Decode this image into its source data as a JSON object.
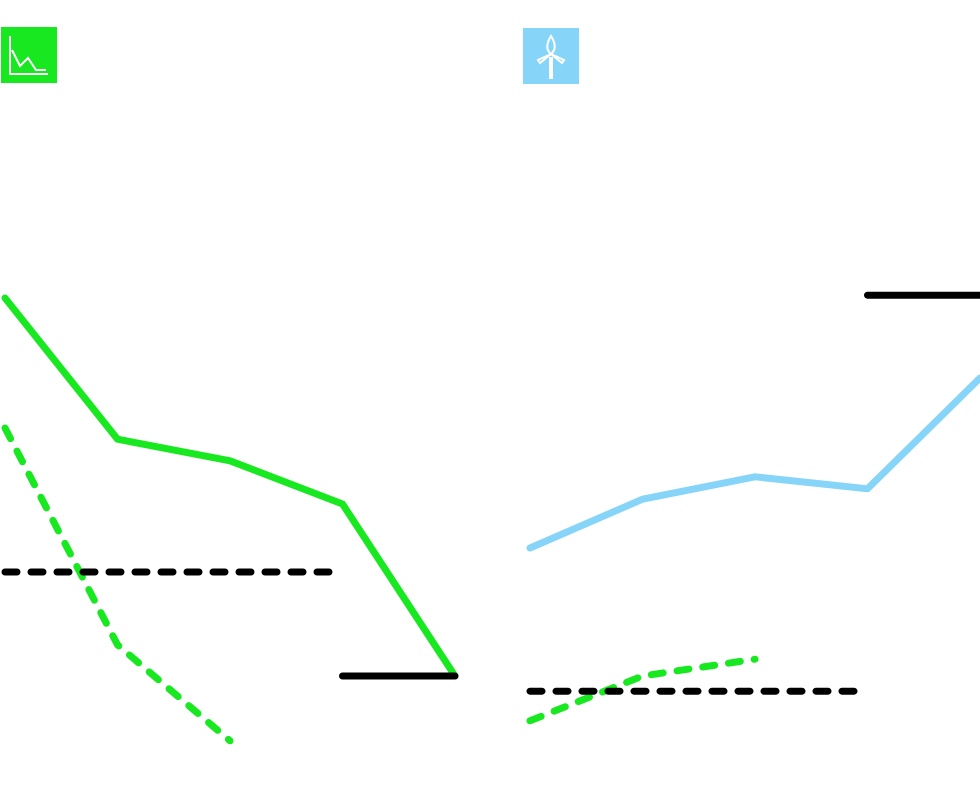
{
  "chart_data": [
    {
      "type": "line",
      "categories": [
        null,
        null,
        null,
        null,
        null
      ],
      "ylim": [
        0,
        100
      ],
      "series": [
        {
          "color": "#17e81f",
          "dash": false,
          "values": [
            62.75,
            45.1,
            42.4,
            37,
            15.5
          ]
        },
        {
          "color": "#17e81f",
          "dash": true,
          "values": [
            46.5,
            19.4,
            7.4,
            null,
            null
          ]
        },
        {
          "color": "#000000",
          "dash": true,
          "values": [
            28.5,
            28.5,
            28.5,
            28.5,
            null
          ]
        },
        {
          "color": "#000000",
          "dash": false,
          "values": [
            null,
            null,
            null,
            15.5,
            15.5
          ]
        }
      ]
    },
    {
      "type": "line",
      "categories": [
        null,
        null,
        null,
        null,
        null
      ],
      "ylim": [
        0,
        100
      ],
      "series": [
        {
          "color": "#87d4f9",
          "dash": false,
          "values": [
            31.5,
            37.6,
            40.4,
            38.9,
            52.75
          ]
        },
        {
          "color": "#17e81f",
          "dash": true,
          "values": [
            9.9,
            15.5,
            17.6,
            null,
            null
          ]
        },
        {
          "color": "#000000",
          "dash": true,
          "values": [
            13.6,
            13.6,
            13.6,
            13.6,
            null
          ]
        },
        {
          "color": "#000000",
          "dash": false,
          "values": [
            null,
            null,
            null,
            63.1,
            63.1
          ]
        }
      ]
    }
  ]
}
